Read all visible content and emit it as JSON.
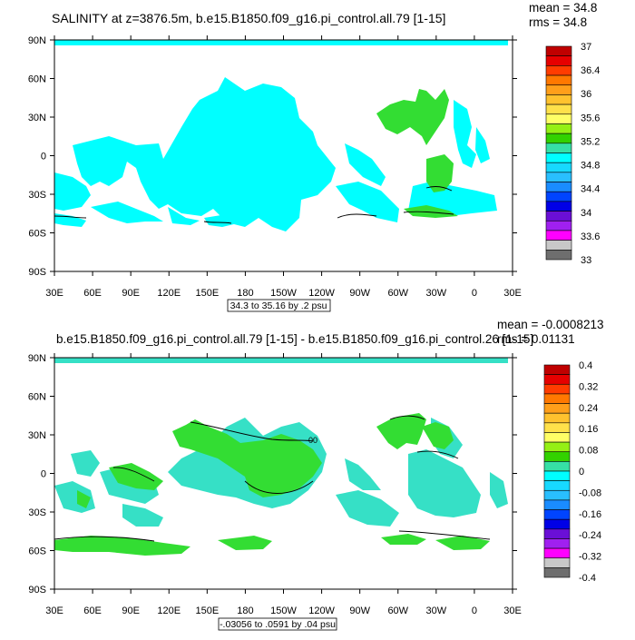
{
  "top_panel": {
    "title": "SALINITY at z=3876.5m, b.e15.B1850.f09_g16.pi_control.all.79 [1-15]",
    "mean_text": "mean = 34.8",
    "rms_text": "rms = 34.8",
    "range_text": "34.3 to 35.16 by .2 psu",
    "lat_labels": [
      "90N",
      "60N",
      "30N",
      "0",
      "30S",
      "60S",
      "90S"
    ],
    "lon_labels": [
      "30E",
      "60E",
      "90E",
      "120E",
      "150E",
      "180",
      "150W",
      "120W",
      "90W",
      "60W",
      "30W",
      "0",
      "30E"
    ],
    "colorbar_labels": [
      "37",
      "36.4",
      "36",
      "35.6",
      "35.2",
      "34.8",
      "34.4",
      "34",
      "33.6",
      "33"
    ],
    "colorbar_colors": [
      "#c00000",
      "#e60000",
      "#ff3c00",
      "#ff7800",
      "#ff9f1a",
      "#ffc22e",
      "#ffe14a",
      "#ffff66",
      "#95f015",
      "#32d200",
      "#36e0a6",
      "#00ffff",
      "#17d9ff",
      "#29bfff",
      "#1a8cff",
      "#0044ff",
      "#0000e6",
      "#6a0fd6",
      "#a020f0",
      "#ff00ff",
      "#c8c8c8",
      "#6e6e6e"
    ],
    "ocean_color": "#00ffff",
    "highlight_color": "#33dd33"
  },
  "bottom_panel": {
    "title": "b.e15.B1850.f09_g16.pi_control.all.79 [1-15] - b.e15.B1850.f09_g16.pi_control.26 [1-15]",
    "mean_text": "mean = -0.0008213",
    "rms_text": "rms = 0.01131",
    "range_text": "-.03056 to .0591 by .04 psu",
    "contour_label": "00",
    "lat_labels": [
      "90N",
      "60N",
      "30N",
      "0",
      "30S",
      "60S",
      "90S"
    ],
    "lon_labels": [
      "30E",
      "60E",
      "90E",
      "120E",
      "150E",
      "180",
      "150W",
      "120W",
      "90W",
      "60W",
      "30W",
      "0",
      "30E"
    ],
    "colorbar_labels": [
      "0.4",
      "0.32",
      "0.24",
      "0.16",
      "0.08",
      "0",
      "-0.08",
      "-0.16",
      "-0.24",
      "-0.32",
      "-0.4"
    ],
    "colorbar_colors": [
      "#c00000",
      "#e60000",
      "#ff3c00",
      "#ff7800",
      "#ff9f1a",
      "#ffc22e",
      "#ffe14a",
      "#ffff66",
      "#95f015",
      "#32d200",
      "#36e0a6",
      "#00ffff",
      "#17d9ff",
      "#29bfff",
      "#1a8cff",
      "#0044ff",
      "#0000e6",
      "#6a0fd6",
      "#a020f0",
      "#ff00ff",
      "#c8c8c8",
      "#6e6e6e"
    ],
    "ocean_color": "#36e0c6",
    "highlight_color": "#33dd33"
  }
}
